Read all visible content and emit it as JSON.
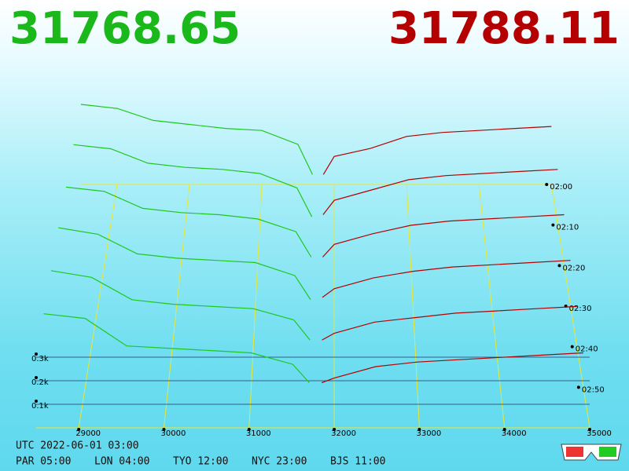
{
  "chart_data": {
    "type": "depth3d",
    "best_bid": 31768.65,
    "best_ask": 31788.11,
    "bid_color": "#1ec81e",
    "ask_color": "#b40000",
    "bid_title_color": "#1bb81b",
    "ask_title_color": "#b40000",
    "bid_prices": [
      28500,
      29000,
      29500,
      30000,
      30500,
      31000,
      31500,
      31700
    ],
    "ask_prices": [
      31850,
      32000,
      32500,
      33000,
      33500,
      34000,
      34500,
      35000
    ],
    "xlim": [
      28500,
      35000
    ],
    "xticks": [
      29000,
      30000,
      31000,
      32000,
      33000,
      34000,
      35000
    ],
    "ylim": [
      0,
      0.4
    ],
    "yticks": [
      {
        "value": 0.1,
        "label": "0.1k"
      },
      {
        "value": 0.2,
        "label": "0.2k"
      },
      {
        "value": 0.3,
        "label": "0.3k"
      }
    ],
    "slices": [
      {
        "time": "02:00",
        "bids": [
          0.4,
          0.38,
          0.32,
          0.3,
          0.28,
          0.27,
          0.2,
          0.05
        ],
        "asks": [
          0.05,
          0.14,
          0.18,
          0.24,
          0.26,
          0.27,
          0.28,
          0.29
        ]
      },
      {
        "time": "02:10",
        "bids": [
          0.39,
          0.37,
          0.3,
          0.28,
          0.27,
          0.25,
          0.18,
          0.04
        ],
        "asks": [
          0.05,
          0.12,
          0.17,
          0.22,
          0.24,
          0.25,
          0.26,
          0.27
        ]
      },
      {
        "time": "02:20",
        "bids": [
          0.37,
          0.35,
          0.27,
          0.25,
          0.24,
          0.22,
          0.16,
          0.04
        ],
        "asks": [
          0.04,
          0.1,
          0.15,
          0.19,
          0.21,
          0.22,
          0.23,
          0.24
        ]
      },
      {
        "time": "02:30",
        "bids": [
          0.36,
          0.33,
          0.24,
          0.22,
          0.21,
          0.2,
          0.14,
          0.03
        ],
        "asks": [
          0.04,
          0.08,
          0.13,
          0.16,
          0.18,
          0.19,
          0.2,
          0.21
        ]
      },
      {
        "time": "02:40",
        "bids": [
          0.34,
          0.31,
          0.21,
          0.19,
          0.18,
          0.17,
          0.12,
          0.03
        ],
        "asks": [
          0.03,
          0.06,
          0.11,
          0.13,
          0.15,
          0.16,
          0.17,
          0.18
        ]
      },
      {
        "time": "02:50",
        "bids": [
          0.32,
          0.3,
          0.18,
          0.17,
          0.16,
          0.15,
          0.1,
          0.02
        ],
        "asks": [
          0.02,
          0.04,
          0.09,
          0.11,
          0.12,
          0.13,
          0.14,
          0.15
        ]
      }
    ],
    "utc_label": "UTC 2022-06-01 03:00",
    "zones": [
      "PAR 05:00",
      "LON 04:00",
      "TYO 12:00",
      "NYC 23:00",
      "BJS 11:00"
    ]
  }
}
